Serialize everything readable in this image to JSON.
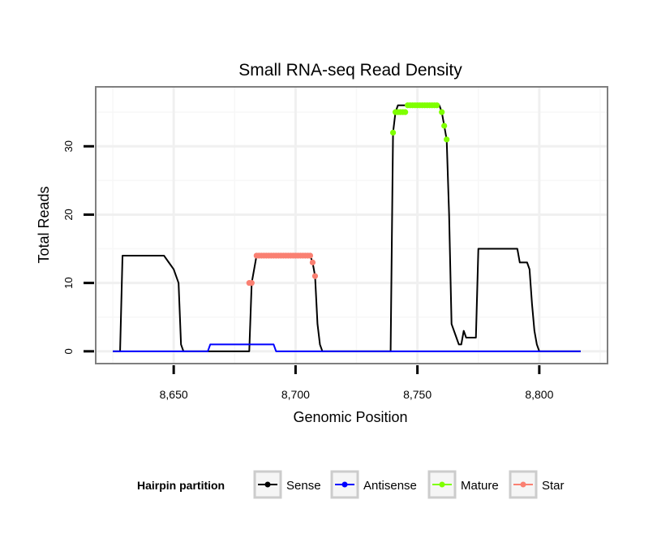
{
  "chart_data": {
    "type": "line",
    "title": "Small RNA-seq Read Density",
    "xlabel": "Genomic Position",
    "ylabel": "Total Reads",
    "xlim": [
      8618,
      8828
    ],
    "ylim": [
      -1.8,
      38.7
    ],
    "x_ticks": [
      8650,
      8700,
      8750,
      8800
    ],
    "x_tick_labels": [
      "8,650",
      "8,700",
      "8,750",
      "8,800"
    ],
    "y_ticks": [
      0,
      10,
      20,
      30
    ],
    "y_tick_labels": [
      "0",
      "10",
      "20",
      "30"
    ],
    "grid": true,
    "legend": {
      "title": "Hairpin partition",
      "position": "bottom",
      "entries": [
        "Sense",
        "Antisense",
        "Mature",
        "Star"
      ]
    },
    "series": [
      {
        "name": "Sense",
        "color": "#000000",
        "style": "line",
        "points": [
          [
            8625,
            0
          ],
          [
            8628,
            0
          ],
          [
            8629,
            14
          ],
          [
            8646,
            14
          ],
          [
            8648,
            13
          ],
          [
            8650,
            12
          ],
          [
            8652,
            10
          ],
          [
            8653,
            1
          ],
          [
            8654,
            0
          ],
          [
            8680,
            0
          ],
          [
            8681,
            0
          ],
          [
            8682,
            10
          ],
          [
            8683,
            12
          ],
          [
            8684,
            14
          ],
          [
            8706,
            14
          ],
          [
            8707,
            13
          ],
          [
            8708,
            11
          ],
          [
            8709,
            4
          ],
          [
            8710,
            1
          ],
          [
            8711,
            0
          ],
          [
            8739,
            0
          ],
          [
            8740,
            32
          ],
          [
            8741,
            35
          ],
          [
            8742,
            36
          ],
          [
            8743,
            36
          ],
          [
            8757,
            36
          ],
          [
            8759,
            36
          ],
          [
            8760,
            35
          ],
          [
            8761,
            33
          ],
          [
            8762,
            31
          ],
          [
            8763,
            20
          ],
          [
            8764,
            4
          ],
          [
            8766,
            2
          ],
          [
            8767,
            1
          ],
          [
            8768,
            1
          ],
          [
            8769,
            3
          ],
          [
            8770,
            2
          ],
          [
            8774,
            2
          ],
          [
            8775,
            15
          ],
          [
            8791,
            15
          ],
          [
            8792,
            13
          ],
          [
            8795,
            13
          ],
          [
            8796,
            12
          ],
          [
            8797,
            7
          ],
          [
            8798,
            3
          ],
          [
            8799,
            1
          ],
          [
            8800,
            0
          ],
          [
            8817,
            0
          ]
        ]
      },
      {
        "name": "Antisense",
        "color": "#0000ff",
        "style": "line",
        "points": [
          [
            8625,
            0
          ],
          [
            8664,
            0
          ],
          [
            8665,
            1
          ],
          [
            8691,
            1
          ],
          [
            8692,
            0
          ],
          [
            8817,
            0
          ]
        ]
      },
      {
        "name": "Mature",
        "color": "#7fff00",
        "style": "points",
        "points": [
          [
            8740,
            32
          ],
          [
            8741,
            35
          ],
          [
            8742,
            35
          ],
          [
            8743,
            35
          ],
          [
            8744,
            35
          ],
          [
            8745,
            35
          ],
          [
            8746,
            36
          ],
          [
            8747,
            36
          ],
          [
            8748,
            36
          ],
          [
            8749,
            36
          ],
          [
            8750,
            36
          ],
          [
            8751,
            36
          ],
          [
            8752,
            36
          ],
          [
            8753,
            36
          ],
          [
            8754,
            36
          ],
          [
            8755,
            36
          ],
          [
            8756,
            36
          ],
          [
            8757,
            36
          ],
          [
            8758,
            36
          ],
          [
            8760,
            35
          ],
          [
            8761,
            33
          ],
          [
            8762,
            31
          ]
        ]
      },
      {
        "name": "Star",
        "color": "#fa8072",
        "style": "points",
        "points": [
          [
            8681,
            10
          ],
          [
            8682,
            10
          ],
          [
            8684,
            14
          ],
          [
            8685,
            14
          ],
          [
            8686,
            14
          ],
          [
            8687,
            14
          ],
          [
            8688,
            14
          ],
          [
            8689,
            14
          ],
          [
            8690,
            14
          ],
          [
            8691,
            14
          ],
          [
            8692,
            14
          ],
          [
            8693,
            14
          ],
          [
            8694,
            14
          ],
          [
            8695,
            14
          ],
          [
            8696,
            14
          ],
          [
            8697,
            14
          ],
          [
            8698,
            14
          ],
          [
            8699,
            14
          ],
          [
            8700,
            14
          ],
          [
            8701,
            14
          ],
          [
            8702,
            14
          ],
          [
            8703,
            14
          ],
          [
            8704,
            14
          ],
          [
            8705,
            14
          ],
          [
            8706,
            14
          ],
          [
            8707,
            13
          ],
          [
            8708,
            11
          ]
        ]
      }
    ]
  }
}
